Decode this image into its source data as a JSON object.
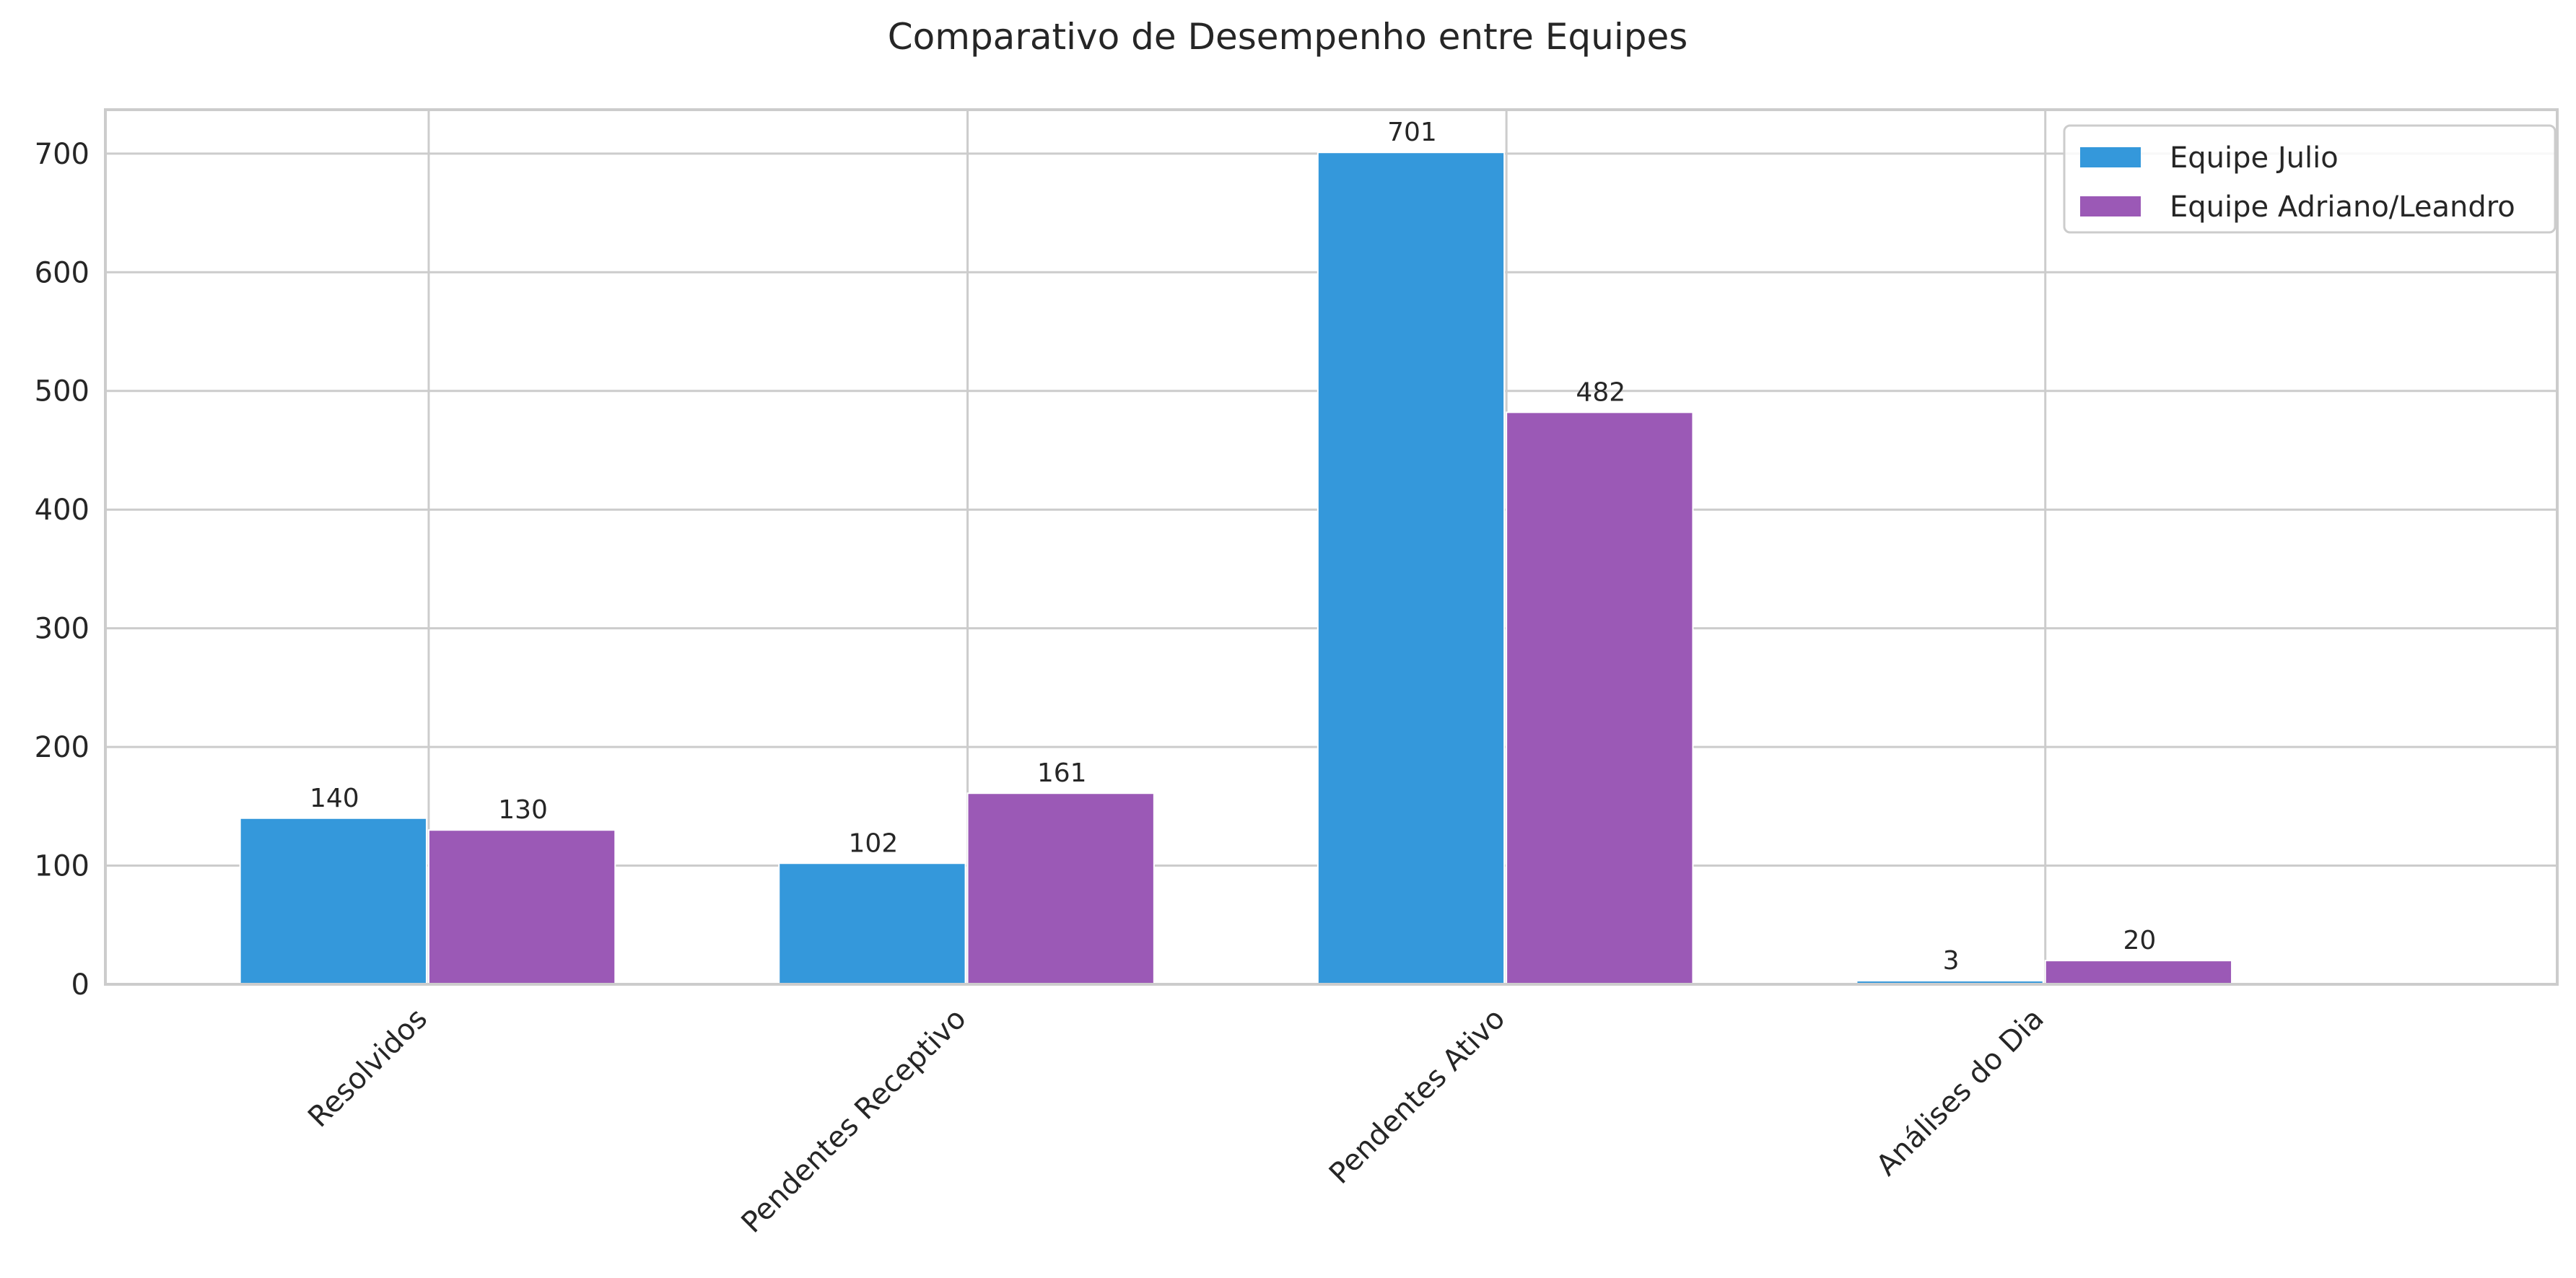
{
  "chart_data": {
    "type": "bar",
    "title": "Comparativo de Desempenho entre Equipes",
    "xlabel": "",
    "ylabel": "",
    "categories": [
      "Resolvidos",
      "Pendentes Receptivo",
      "Pendentes Ativo",
      "Análises do Dia"
    ],
    "series": [
      {
        "name": "Equipe Julio",
        "values": [
          140,
          102,
          701,
          3
        ],
        "color": "#3498db"
      },
      {
        "name": "Equipe Adriano/Leandro",
        "values": [
          130,
          161,
          482,
          20
        ],
        "color": "#9b59b6"
      }
    ],
    "ylim": [
      0,
      737
    ],
    "yticks": [
      0,
      100,
      200,
      300,
      400,
      500,
      600,
      700
    ],
    "grid": true,
    "legend_position": "top-right",
    "x_tick_rotation": "45 degrees"
  }
}
